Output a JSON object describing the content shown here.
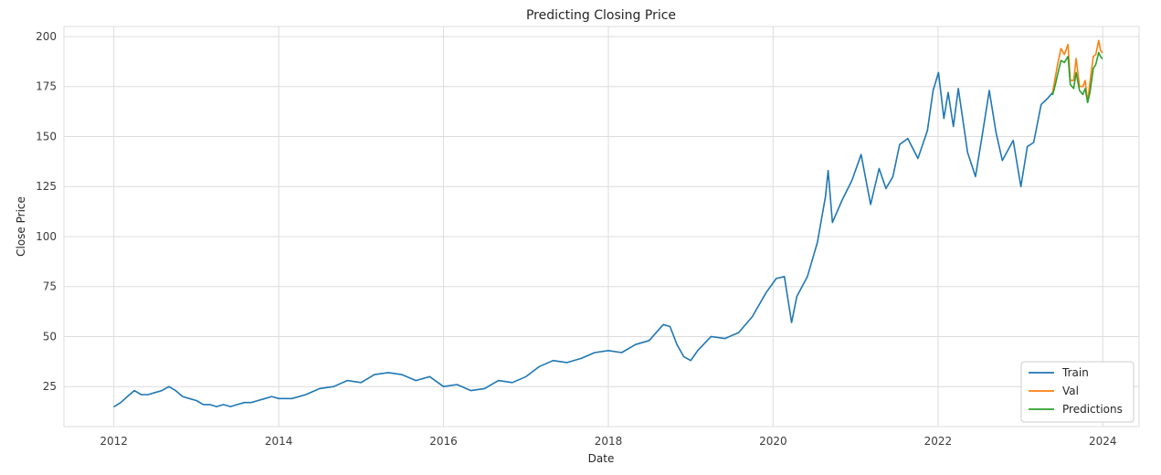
{
  "chart_data": {
    "type": "line",
    "title": "Predicting Closing Price",
    "xlabel": "Date",
    "ylabel": "Close Price",
    "x_ticks": [
      "2012",
      "2014",
      "2016",
      "2018",
      "2020",
      "2022",
      "2024"
    ],
    "y_ticks": [
      25,
      50,
      75,
      100,
      125,
      150,
      175,
      200
    ],
    "xlim": [
      "2011-05-25",
      "2024-06-10"
    ],
    "ylim": [
      5,
      205
    ],
    "grid": true,
    "legend_position": "lower-right",
    "series": [
      {
        "name": "Train",
        "color": "#1f77b4",
        "points": [
          [
            "2012-01-03",
            15
          ],
          [
            "2012-02-01",
            17
          ],
          [
            "2012-03-01",
            20
          ],
          [
            "2012-04-01",
            23
          ],
          [
            "2012-05-01",
            21
          ],
          [
            "2012-06-01",
            21
          ],
          [
            "2012-07-01",
            22
          ],
          [
            "2012-08-01",
            23
          ],
          [
            "2012-09-01",
            25
          ],
          [
            "2012-10-01",
            23
          ],
          [
            "2012-11-01",
            20
          ],
          [
            "2012-12-01",
            19
          ],
          [
            "2013-01-01",
            18
          ],
          [
            "2013-02-01",
            16
          ],
          [
            "2013-03-01",
            16
          ],
          [
            "2013-04-01",
            15
          ],
          [
            "2013-05-01",
            16
          ],
          [
            "2013-06-01",
            15
          ],
          [
            "2013-07-01",
            16
          ],
          [
            "2013-08-01",
            17
          ],
          [
            "2013-09-01",
            17
          ],
          [
            "2013-10-01",
            18
          ],
          [
            "2013-11-01",
            19
          ],
          [
            "2013-12-01",
            20
          ],
          [
            "2014-01-01",
            19
          ],
          [
            "2014-03-01",
            19
          ],
          [
            "2014-05-01",
            21
          ],
          [
            "2014-07-01",
            24
          ],
          [
            "2014-09-01",
            25
          ],
          [
            "2014-11-01",
            28
          ],
          [
            "2015-01-01",
            27
          ],
          [
            "2015-03-01",
            31
          ],
          [
            "2015-05-01",
            32
          ],
          [
            "2015-07-01",
            31
          ],
          [
            "2015-09-01",
            28
          ],
          [
            "2015-11-01",
            30
          ],
          [
            "2016-01-01",
            25
          ],
          [
            "2016-03-01",
            26
          ],
          [
            "2016-05-01",
            23
          ],
          [
            "2016-07-01",
            24
          ],
          [
            "2016-09-01",
            28
          ],
          [
            "2016-11-01",
            27
          ],
          [
            "2017-01-01",
            30
          ],
          [
            "2017-03-01",
            35
          ],
          [
            "2017-05-01",
            38
          ],
          [
            "2017-07-01",
            37
          ],
          [
            "2017-09-01",
            39
          ],
          [
            "2017-11-01",
            42
          ],
          [
            "2018-01-01",
            43
          ],
          [
            "2018-03-01",
            42
          ],
          [
            "2018-05-01",
            46
          ],
          [
            "2018-07-01",
            48
          ],
          [
            "2018-09-01",
            56
          ],
          [
            "2018-10-01",
            55
          ],
          [
            "2018-11-01",
            46
          ],
          [
            "2018-12-01",
            40
          ],
          [
            "2019-01-01",
            38
          ],
          [
            "2019-02-01",
            43
          ],
          [
            "2019-04-01",
            50
          ],
          [
            "2019-06-01",
            49
          ],
          [
            "2019-08-01",
            52
          ],
          [
            "2019-10-01",
            60
          ],
          [
            "2019-12-01",
            72
          ],
          [
            "2020-01-15",
            79
          ],
          [
            "2020-02-20",
            80
          ],
          [
            "2020-03-23",
            57
          ],
          [
            "2020-04-15",
            70
          ],
          [
            "2020-06-01",
            80
          ],
          [
            "2020-07-15",
            97
          ],
          [
            "2020-08-20",
            120
          ],
          [
            "2020-09-01",
            133
          ],
          [
            "2020-09-20",
            107
          ],
          [
            "2020-11-01",
            118
          ],
          [
            "2020-12-15",
            128
          ],
          [
            "2021-01-25",
            141
          ],
          [
            "2021-03-08",
            116
          ],
          [
            "2021-04-15",
            134
          ],
          [
            "2021-05-15",
            124
          ],
          [
            "2021-06-15",
            130
          ],
          [
            "2021-07-15",
            146
          ],
          [
            "2021-08-20",
            149
          ],
          [
            "2021-10-04",
            139
          ],
          [
            "2021-11-15",
            153
          ],
          [
            "2021-12-10",
            173
          ],
          [
            "2022-01-03",
            182
          ],
          [
            "2022-01-27",
            159
          ],
          [
            "2022-02-15",
            172
          ],
          [
            "2022-03-10",
            155
          ],
          [
            "2022-04-01",
            174
          ],
          [
            "2022-05-12",
            142
          ],
          [
            "2022-06-16",
            130
          ],
          [
            "2022-07-15",
            150
          ],
          [
            "2022-08-16",
            173
          ],
          [
            "2022-09-15",
            152
          ],
          [
            "2022-10-13",
            138
          ],
          [
            "2022-11-30",
            148
          ],
          [
            "2023-01-03",
            125
          ],
          [
            "2023-02-01",
            145
          ],
          [
            "2023-03-01",
            147
          ],
          [
            "2023-04-03",
            166
          ],
          [
            "2023-05-01",
            169
          ],
          [
            "2023-05-24",
            172
          ]
        ]
      },
      {
        "name": "Val",
        "color": "#ff7f0e",
        "points": [
          [
            "2023-05-24",
            172
          ],
          [
            "2023-06-05",
            180
          ],
          [
            "2023-06-15",
            186
          ],
          [
            "2023-06-30",
            194
          ],
          [
            "2023-07-15",
            191
          ],
          [
            "2023-07-31",
            196
          ],
          [
            "2023-08-10",
            178
          ],
          [
            "2023-08-25",
            178
          ],
          [
            "2023-09-05",
            189
          ],
          [
            "2023-09-20",
            175
          ],
          [
            "2023-10-05",
            175
          ],
          [
            "2023-10-15",
            178
          ],
          [
            "2023-10-26",
            167
          ],
          [
            "2023-11-05",
            177
          ],
          [
            "2023-11-20",
            190
          ],
          [
            "2023-12-01",
            191
          ],
          [
            "2023-12-14",
            198
          ],
          [
            "2023-12-22",
            193
          ],
          [
            "2023-12-29",
            192
          ]
        ]
      },
      {
        "name": "Predictions",
        "color": "#2ca02c",
        "points": [
          [
            "2023-05-24",
            171
          ],
          [
            "2023-06-05",
            176
          ],
          [
            "2023-06-15",
            181
          ],
          [
            "2023-06-30",
            188
          ],
          [
            "2023-07-15",
            187
          ],
          [
            "2023-07-31",
            190
          ],
          [
            "2023-08-10",
            176
          ],
          [
            "2023-08-25",
            174
          ],
          [
            "2023-09-05",
            182
          ],
          [
            "2023-09-20",
            173
          ],
          [
            "2023-10-05",
            171
          ],
          [
            "2023-10-15",
            174
          ],
          [
            "2023-10-26",
            167
          ],
          [
            "2023-11-05",
            172
          ],
          [
            "2023-11-20",
            184
          ],
          [
            "2023-12-01",
            186
          ],
          [
            "2023-12-14",
            192
          ],
          [
            "2023-12-22",
            190
          ],
          [
            "2023-12-29",
            189
          ]
        ]
      }
    ]
  }
}
